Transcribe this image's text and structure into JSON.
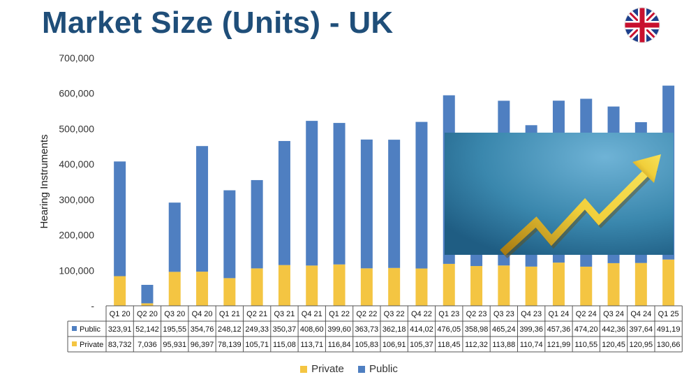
{
  "page": {
    "title": "Market Size (Units) - UK"
  },
  "icons": {
    "flag": "uk-flag-icon",
    "growth": "upward-arrow-image"
  },
  "colors": {
    "public": "#4f7fc1",
    "private": "#f4c542",
    "title": "#1f4e79"
  },
  "chart_data": {
    "type": "bar",
    "stacked": true,
    "ylabel": "Hearing Instruments",
    "ylim": [
      0,
      700000
    ],
    "yticks": [
      "-",
      "100,000",
      "200,000",
      "300,000",
      "400,000",
      "500,000",
      "600,000",
      "700,000"
    ],
    "categories": [
      "Q1 20",
      "Q2 20",
      "Q3 20",
      "Q4 20",
      "Q1 21",
      "Q2 21",
      "Q3 21",
      "Q4 21",
      "Q1 22",
      "Q2 22",
      "Q3 22",
      "Q4 22",
      "Q1 23",
      "Q2 23",
      "Q3 23",
      "Q4 23",
      "Q1 24",
      "Q2 24",
      "Q3 24",
      "Q4 24",
      "Q1 25"
    ],
    "series": [
      {
        "name": "Public",
        "values": [
          323910,
          52142,
          195550,
          354760,
          248120,
          249330,
          350370,
          408600,
          399600,
          363730,
          362180,
          414020,
          476050,
          358980,
          465240,
          399360,
          457360,
          474200,
          442360,
          397640,
          491190
        ],
        "labels": [
          "323,91",
          "52,142",
          "195,55",
          "354,76",
          "248,12",
          "249,33",
          "350,37",
          "408,60",
          "399,60",
          "363,73",
          "362,18",
          "414,02",
          "476,05",
          "358,98",
          "465,24",
          "399,36",
          "457,36",
          "474,20",
          "442,36",
          "397,64",
          "491,19"
        ]
      },
      {
        "name": "Private",
        "values": [
          83732,
          7036,
          95931,
          96397,
          78139,
          105710,
          115080,
          113710,
          116840,
          105830,
          106910,
          105370,
          118450,
          112320,
          113880,
          110740,
          121990,
          110550,
          120450,
          120950,
          130660
        ],
        "labels": [
          "83,732",
          "7,036",
          "95,931",
          "96,397",
          "78,139",
          "105,71",
          "115,08",
          "113,71",
          "116,84",
          "105,83",
          "106,91",
          "105,37",
          "118,45",
          "112,32",
          "113,88",
          "110,74",
          "121,99",
          "110,55",
          "120,45",
          "120,95",
          "130,66"
        ]
      }
    ],
    "legend": [
      "Private",
      "Public"
    ],
    "legend_position": "bottom"
  }
}
